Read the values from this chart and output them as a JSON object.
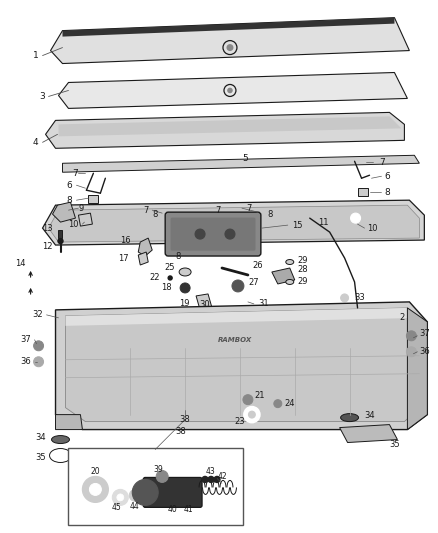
{
  "bg_color": "#ffffff",
  "fig_width": 4.38,
  "fig_height": 5.33,
  "dpi": 100,
  "dark": "#1a1a1a",
  "gray": "#555555",
  "lightgray": "#cccccc",
  "midgray": "#888888"
}
